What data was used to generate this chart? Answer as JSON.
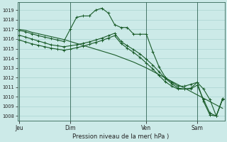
{
  "title": "Pression niveau de la mer( hPa )",
  "bg_color": "#cceae8",
  "grid_color": "#aad4d0",
  "line_color": "#1a5c2a",
  "vline_color": "#336655",
  "ylim": [
    1007.5,
    1019.8
  ],
  "yticks": [
    1008,
    1009,
    1010,
    1011,
    1012,
    1013,
    1014,
    1015,
    1016,
    1017,
    1018,
    1019
  ],
  "xtick_labels": [
    "Jeu",
    "Dim",
    "Ven",
    "Sam"
  ],
  "xtick_positions": [
    0,
    8,
    20,
    28
  ],
  "vlines": [
    0,
    8,
    20,
    28
  ],
  "xlim": [
    -0.3,
    32.3
  ],
  "line1_x": [
    0,
    1,
    2,
    3,
    4,
    5,
    6,
    7,
    8,
    9,
    10,
    11,
    12,
    13,
    14,
    15,
    16,
    17,
    18,
    19,
    20,
    21,
    22,
    23,
    24,
    25,
    26,
    27,
    28,
    29,
    30,
    31,
    32
  ],
  "line1_y": [
    1017.0,
    1016.9,
    1016.7,
    1016.55,
    1016.4,
    1016.25,
    1016.1,
    1015.95,
    1015.75,
    1015.55,
    1015.35,
    1015.15,
    1014.95,
    1014.75,
    1014.55,
    1014.35,
    1014.1,
    1013.85,
    1013.6,
    1013.3,
    1013.0,
    1012.65,
    1012.3,
    1011.95,
    1011.6,
    1011.25,
    1010.9,
    1010.55,
    1010.2,
    1009.85,
    1009.5,
    1009.15,
    1008.8
  ],
  "line2_x": [
    0,
    1,
    2,
    3,
    4,
    5,
    6,
    7,
    8,
    9,
    10,
    11,
    12,
    13,
    14,
    15,
    16,
    17,
    18,
    19,
    20,
    21,
    22,
    23,
    24,
    25,
    26,
    27,
    28,
    29,
    30,
    31,
    32
  ],
  "line2_y": [
    1016.9,
    1016.75,
    1016.55,
    1016.35,
    1016.2,
    1016.05,
    1015.9,
    1015.75,
    1017.0,
    1018.25,
    1018.4,
    1018.4,
    1019.0,
    1019.2,
    1018.7,
    1017.5,
    1017.2,
    1017.2,
    1016.5,
    1016.5,
    1016.5,
    1014.7,
    1013.1,
    1012.0,
    1011.5,
    1011.1,
    1011.1,
    1011.3,
    1011.5,
    1010.8,
    1009.7,
    1008.0,
    1009.8
  ],
  "line3_x": [
    0,
    1,
    2,
    3,
    4,
    5,
    6,
    7,
    8,
    9,
    10,
    11,
    12,
    13,
    14,
    15,
    16,
    17,
    18,
    19,
    20,
    21,
    22,
    23,
    24,
    25,
    26,
    27,
    28,
    29,
    30,
    31,
    32
  ],
  "line3_y": [
    1015.9,
    1015.7,
    1015.5,
    1015.35,
    1015.2,
    1015.05,
    1014.95,
    1014.85,
    1014.95,
    1015.1,
    1015.25,
    1015.45,
    1015.65,
    1015.85,
    1016.1,
    1016.35,
    1015.55,
    1015.05,
    1014.6,
    1014.1,
    1013.5,
    1012.9,
    1012.2,
    1011.55,
    1011.1,
    1010.8,
    1010.8,
    1010.9,
    1011.5,
    1009.5,
    1008.1,
    1008.0,
    1009.8
  ],
  "line4_x": [
    0,
    1,
    2,
    3,
    4,
    5,
    6,
    7,
    8,
    9,
    10,
    11,
    12,
    13,
    14,
    15,
    16,
    17,
    18,
    19,
    20,
    21,
    22,
    23,
    24,
    25,
    26,
    27,
    28,
    29,
    30,
    31,
    32
  ],
  "line4_y": [
    1016.4,
    1016.2,
    1016.0,
    1015.8,
    1015.6,
    1015.4,
    1015.3,
    1015.2,
    1015.3,
    1015.4,
    1015.55,
    1015.7,
    1015.9,
    1016.1,
    1016.35,
    1016.6,
    1015.75,
    1015.3,
    1014.9,
    1014.45,
    1013.9,
    1013.3,
    1012.6,
    1011.9,
    1011.35,
    1010.9,
    1010.8,
    1010.85,
    1011.2,
    1009.7,
    1008.3,
    1008.0,
    1009.75
  ]
}
